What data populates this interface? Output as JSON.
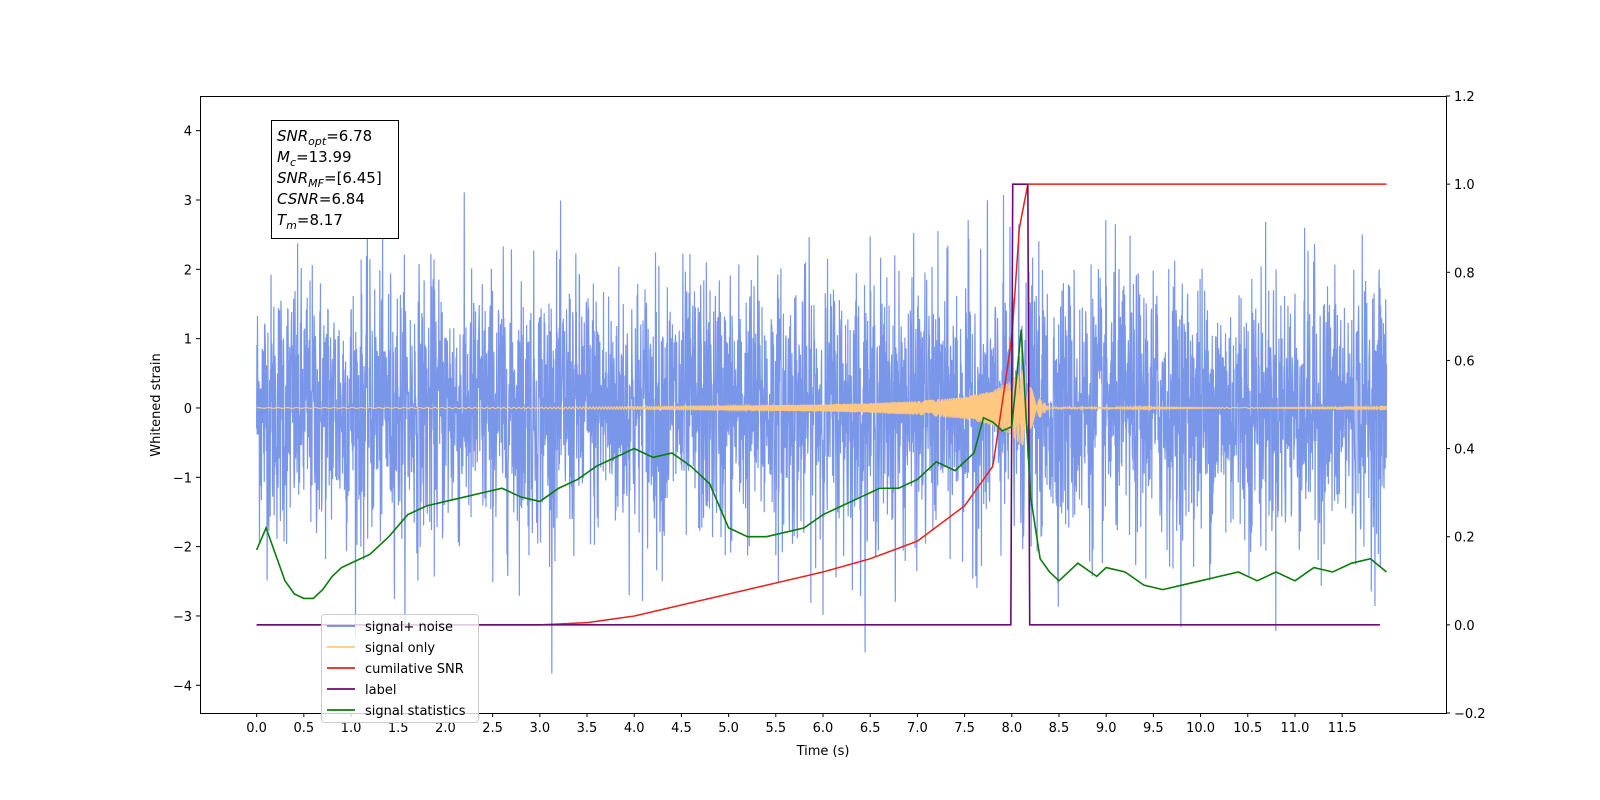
{
  "chart_data": {
    "type": "line",
    "title": "",
    "xlabel": "Time (s)",
    "ylabel_left": "Whitened strain",
    "ylabel_right": "",
    "xlim": [
      -0.6,
      12.6
    ],
    "ylim_left": [
      -4.4,
      4.5
    ],
    "ylim_right": [
      -0.2,
      1.2
    ],
    "grid": false,
    "legend_position": "lower-left",
    "x_ticks": [
      "0.0",
      "0.5",
      "1.0",
      "1.5",
      "2.0",
      "2.5",
      "3.0",
      "3.5",
      "4.0",
      "4.5",
      "5.0",
      "5.5",
      "6.0",
      "6.5",
      "7.0",
      "7.5",
      "8.0",
      "8.5",
      "9.0",
      "9.5",
      "10.0",
      "10.5",
      "11.0",
      "11.5"
    ],
    "y_ticks_left": [
      "4",
      "3",
      "2",
      "1",
      "0",
      "−1",
      "−2",
      "−3",
      "−4"
    ],
    "y_ticks_right": [
      "1.2",
      "1.0",
      "0.8",
      "0.6",
      "0.4",
      "0.2",
      "0.0",
      "−0.2"
    ],
    "annotation": [
      {
        "base": "SNR",
        "sub": "opt",
        "value": "=6.78"
      },
      {
        "base": "M",
        "sub": "c",
        "value": "=13.99"
      },
      {
        "base": "SNR",
        "sub": "MF",
        "value": "=[6.45]"
      },
      {
        "base": "CSNR",
        "sub": "",
        "value": "=6.84"
      },
      {
        "base": "T",
        "sub": "m",
        "value": "=8.17"
      }
    ],
    "noise": {
      "x_start": 0.0,
      "x_end": 11.97,
      "sigma": 1.0,
      "color": "#7a96e8"
    },
    "series": [
      {
        "name": "signal+ noise",
        "color": "#6a8ae6",
        "axis": "left",
        "description": "whitened strain time series, ~N(0,1) noise from 0 to 11.97 s"
      },
      {
        "name": "signal only",
        "color": "#ffc880",
        "axis": "left",
        "envelope": {
          "x": [
            0.0,
            3.0,
            4.0,
            5.0,
            6.0,
            6.5,
            7.0,
            7.5,
            7.8,
            8.0,
            8.1,
            8.17,
            8.25,
            8.4,
            11.97
          ],
          "amplitude": [
            0.005,
            0.01,
            0.02,
            0.03,
            0.05,
            0.07,
            0.1,
            0.16,
            0.25,
            0.4,
            0.55,
            0.5,
            0.2,
            0.01,
            0.005
          ]
        }
      },
      {
        "name": "cumilative SNR",
        "color": "#e8201a",
        "axis": "right",
        "x": [
          0.0,
          3.0,
          3.5,
          4.0,
          4.5,
          5.0,
          5.5,
          6.0,
          6.5,
          7.0,
          7.5,
          7.8,
          8.0,
          8.08,
          8.17,
          11.97
        ],
        "y": [
          0.0,
          0.0,
          0.005,
          0.02,
          0.045,
          0.07,
          0.095,
          0.12,
          0.15,
          0.19,
          0.27,
          0.36,
          0.65,
          0.9,
          1.0,
          1.0
        ]
      },
      {
        "name": "label",
        "color": "#6b0a73",
        "axis": "right",
        "x": [
          0.0,
          7.99,
          8.01,
          8.17,
          8.19,
          11.9
        ],
        "y": [
          0.0,
          0.0,
          1.0,
          1.0,
          0.0,
          0.0
        ]
      },
      {
        "name": "signal statistics",
        "color": "#0d7a0d",
        "axis": "right",
        "x": [
          0.0,
          0.1,
          0.2,
          0.3,
          0.4,
          0.5,
          0.6,
          0.7,
          0.8,
          0.9,
          1.0,
          1.2,
          1.4,
          1.6,
          1.8,
          2.0,
          2.2,
          2.4,
          2.6,
          2.8,
          3.0,
          3.2,
          3.4,
          3.6,
          3.8,
          4.0,
          4.2,
          4.4,
          4.6,
          4.8,
          5.0,
          5.2,
          5.4,
          5.6,
          5.8,
          6.0,
          6.2,
          6.4,
          6.6,
          6.8,
          7.0,
          7.2,
          7.4,
          7.6,
          7.7,
          7.8,
          7.9,
          8.0,
          8.1,
          8.2,
          8.3,
          8.4,
          8.5,
          8.7,
          8.9,
          9.0,
          9.2,
          9.4,
          9.6,
          9.8,
          10.0,
          10.2,
          10.4,
          10.6,
          10.8,
          11.0,
          11.2,
          11.4,
          11.6,
          11.8,
          11.97
        ],
        "y": [
          0.17,
          0.22,
          0.16,
          0.1,
          0.07,
          0.06,
          0.06,
          0.08,
          0.11,
          0.13,
          0.14,
          0.16,
          0.2,
          0.25,
          0.27,
          0.28,
          0.29,
          0.3,
          0.31,
          0.29,
          0.28,
          0.31,
          0.33,
          0.36,
          0.38,
          0.4,
          0.38,
          0.39,
          0.36,
          0.32,
          0.22,
          0.2,
          0.2,
          0.21,
          0.22,
          0.25,
          0.27,
          0.29,
          0.31,
          0.31,
          0.33,
          0.37,
          0.35,
          0.39,
          0.47,
          0.46,
          0.44,
          0.45,
          0.67,
          0.29,
          0.15,
          0.12,
          0.1,
          0.14,
          0.11,
          0.13,
          0.12,
          0.09,
          0.08,
          0.09,
          0.1,
          0.11,
          0.12,
          0.1,
          0.12,
          0.1,
          0.13,
          0.12,
          0.14,
          0.15,
          0.12
        ]
      }
    ],
    "legend": [
      {
        "label": "signal+ noise",
        "color": "#6a8ae6"
      },
      {
        "label": "signal only",
        "color": "#ffc880"
      },
      {
        "label": "cumilative SNR",
        "color": "#e8201a"
      },
      {
        "label": "label",
        "color": "#6b0a73"
      },
      {
        "label": "signal statistics",
        "color": "#0d7a0d"
      }
    ]
  }
}
